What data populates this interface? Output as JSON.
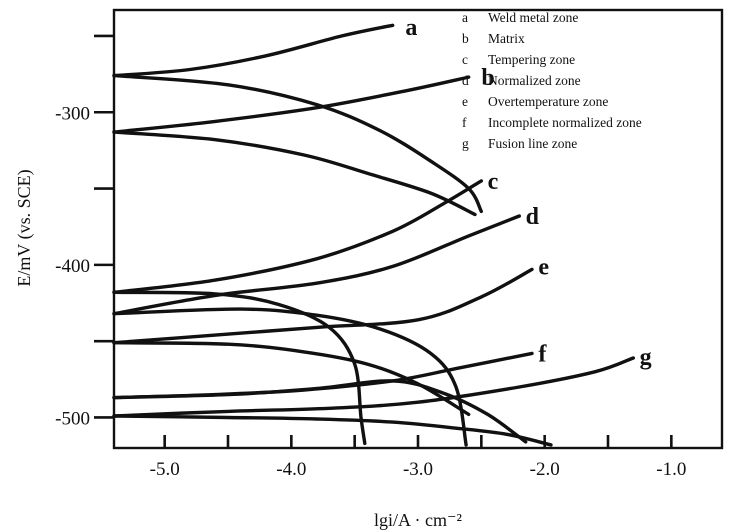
{
  "chart_data": {
    "type": "line",
    "xlabel": "lgi/A · cm⁻²",
    "ylabel": "E/mV (vs. SCE)",
    "xlim": [
      -5.4,
      -0.6
    ],
    "ylim": [
      -520,
      -233
    ],
    "x_ticks": [
      -5.0,
      -4.0,
      -3.0,
      -2.0,
      -1.0
    ],
    "x_tick_labels": [
      "-5.0",
      "-4.0",
      "-3.0",
      "-2.0",
      "-1.0"
    ],
    "y_ticks": [
      -300,
      -400,
      -500
    ],
    "y_tick_labels": [
      "-300",
      "-400",
      "-500"
    ],
    "legend_position": "top-right",
    "legend": [
      {
        "key": "a",
        "label": "Weld metal zone"
      },
      {
        "key": "b",
        "label": "Matrix"
      },
      {
        "key": "c",
        "label": "Tempering zone"
      },
      {
        "key": "d",
        "label": "Normalized zone"
      },
      {
        "key": "e",
        "label": "Overtemperature zone"
      },
      {
        "key": "f",
        "label": "Incomplete normalized zone"
      },
      {
        "key": "g",
        "label": "Fusion line zone"
      }
    ],
    "series": [
      {
        "name": "a",
        "anodic": [
          [
            -5.4,
            -276
          ],
          [
            -4.8,
            -272
          ],
          [
            -4.2,
            -263
          ],
          [
            -3.6,
            -250
          ],
          [
            -3.2,
            -243
          ]
        ],
        "cathodic": [
          [
            -5.4,
            -276
          ],
          [
            -4.5,
            -282
          ],
          [
            -3.8,
            -295
          ],
          [
            -3.3,
            -312
          ],
          [
            -2.9,
            -332
          ],
          [
            -2.6,
            -350
          ],
          [
            -2.5,
            -365
          ]
        ],
        "label_at": [
          -3.1,
          -244
        ]
      },
      {
        "name": "b",
        "anodic": [
          [
            -5.4,
            -313
          ],
          [
            -4.6,
            -306
          ],
          [
            -3.8,
            -297
          ],
          [
            -3.1,
            -286
          ],
          [
            -2.6,
            -277
          ]
        ],
        "cathodic": [
          [
            -5.4,
            -313
          ],
          [
            -4.6,
            -318
          ],
          [
            -3.9,
            -328
          ],
          [
            -3.4,
            -340
          ],
          [
            -2.9,
            -353
          ],
          [
            -2.55,
            -367
          ]
        ],
        "label_at": [
          -2.5,
          -277
        ]
      },
      {
        "name": "c",
        "anodic": [
          [
            -5.4,
            -418
          ],
          [
            -4.6,
            -410
          ],
          [
            -3.8,
            -396
          ],
          [
            -3.2,
            -378
          ],
          [
            -2.8,
            -360
          ],
          [
            -2.5,
            -345
          ]
        ],
        "cathodic": [
          [
            -5.4,
            -418
          ],
          [
            -4.6,
            -419
          ],
          [
            -4.1,
            -426
          ],
          [
            -3.7,
            -441
          ],
          [
            -3.5,
            -465
          ],
          [
            -3.45,
            -500
          ],
          [
            -3.42,
            -517
          ]
        ],
        "label_at": [
          -2.45,
          -345
        ]
      },
      {
        "name": "d",
        "anodic": [
          [
            -5.4,
            -432
          ],
          [
            -4.6,
            -420
          ],
          [
            -3.8,
            -412
          ],
          [
            -3.2,
            -401
          ],
          [
            -2.6,
            -381
          ],
          [
            -2.2,
            -368
          ]
        ],
        "cathodic": [
          [
            -5.4,
            -432
          ],
          [
            -4.4,
            -429
          ],
          [
            -3.8,
            -433
          ],
          [
            -3.3,
            -442
          ],
          [
            -2.9,
            -458
          ],
          [
            -2.7,
            -480
          ],
          [
            -2.62,
            -518
          ]
        ],
        "label_at": [
          -2.15,
          -368
        ]
      },
      {
        "name": "e",
        "anodic": [
          [
            -5.4,
            -451
          ],
          [
            -4.6,
            -446
          ],
          [
            -3.8,
            -441
          ],
          [
            -3.0,
            -436
          ],
          [
            -2.5,
            -421
          ],
          [
            -2.1,
            -403
          ]
        ],
        "cathodic": [
          [
            -5.4,
            -451
          ],
          [
            -4.5,
            -452
          ],
          [
            -3.9,
            -457
          ],
          [
            -3.4,
            -465
          ],
          [
            -3.0,
            -478
          ],
          [
            -2.6,
            -498
          ]
        ],
        "label_at": [
          -2.05,
          -401
        ]
      },
      {
        "name": "f",
        "anodic": [
          [
            -5.4,
            -487
          ],
          [
            -4.6,
            -485
          ],
          [
            -3.9,
            -482
          ],
          [
            -3.2,
            -476
          ],
          [
            -2.7,
            -468
          ],
          [
            -2.1,
            -458
          ]
        ],
        "cathodic": [
          [
            -5.4,
            -487
          ],
          [
            -4.5,
            -485
          ],
          [
            -3.8,
            -481
          ],
          [
            -3.2,
            -476
          ],
          [
            -2.8,
            -484
          ],
          [
            -2.45,
            -498
          ],
          [
            -2.15,
            -516
          ]
        ],
        "label_at": [
          -2.05,
          -458
        ]
      },
      {
        "name": "g",
        "anodic": [
          [
            -5.4,
            -499
          ],
          [
            -4.5,
            -496
          ],
          [
            -3.7,
            -494
          ],
          [
            -3.0,
            -490
          ],
          [
            -2.2,
            -480
          ],
          [
            -1.6,
            -470
          ],
          [
            -1.3,
            -461
          ]
        ],
        "cathodic": [
          [
            -5.4,
            -499
          ],
          [
            -4.5,
            -500
          ],
          [
            -3.8,
            -501
          ],
          [
            -3.2,
            -503
          ],
          [
            -2.7,
            -507
          ],
          [
            -2.3,
            -511
          ],
          [
            -1.95,
            -518
          ]
        ],
        "label_at": [
          -1.25,
          -460
        ]
      }
    ]
  }
}
